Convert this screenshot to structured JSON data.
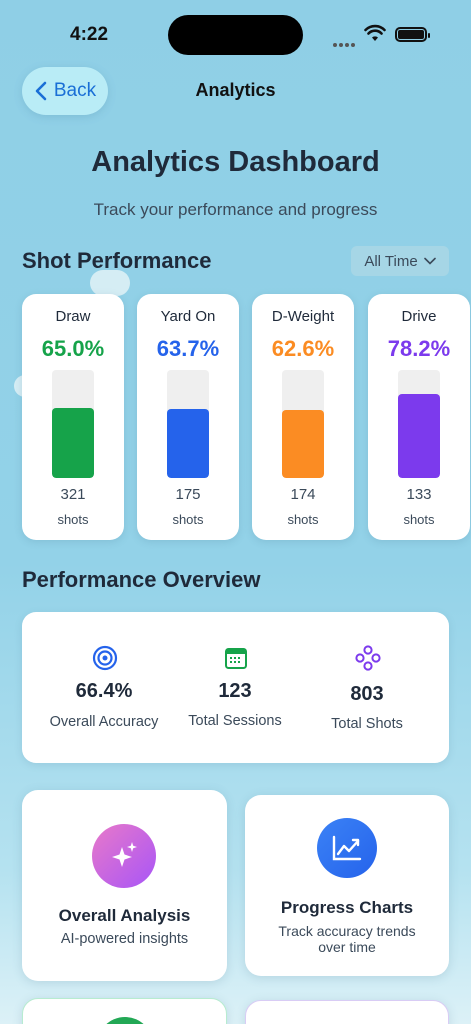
{
  "status": {
    "time": "4:22"
  },
  "nav": {
    "back_label": "Back",
    "title": "Analytics"
  },
  "header": {
    "title": "Analytics Dashboard",
    "subtitle": "Track your performance and progress"
  },
  "shot_performance": {
    "title": "Shot Performance",
    "filter_label": "All Time",
    "cards": [
      {
        "label": "Draw",
        "percent": "65.0%",
        "fill": 0.65,
        "count": "321",
        "unit": "shots",
        "color": "#16a34a"
      },
      {
        "label": "Yard On",
        "percent": "63.7%",
        "fill": 0.637,
        "count": "175",
        "unit": "shots",
        "color": "#2563eb"
      },
      {
        "label": "D-Weight",
        "percent": "62.6%",
        "fill": 0.626,
        "count": "174",
        "unit": "shots",
        "color": "#fb8c23"
      },
      {
        "label": "Drive",
        "percent": "78.2%",
        "fill": 0.782,
        "count": "133",
        "unit": "shots",
        "color": "#7c3aed"
      }
    ]
  },
  "overview": {
    "title": "Performance Overview",
    "items": [
      {
        "value": "66.4%",
        "label": "Overall Accuracy",
        "icon": "target-icon",
        "color": "#2563eb"
      },
      {
        "value": "123",
        "label": "Total Sessions",
        "icon": "calendar-icon",
        "color": "#16a34a"
      },
      {
        "value": "803",
        "label": "Total Shots",
        "icon": "shots-icon",
        "color": "#7c3aed"
      }
    ]
  },
  "features": [
    {
      "title": "Overall Analysis",
      "subtitle": "AI-powered insights",
      "icon": "sparkles-icon"
    },
    {
      "title": "Progress Charts",
      "subtitle": "Track accuracy trends over time",
      "icon": "chart-line-icon"
    }
  ]
}
